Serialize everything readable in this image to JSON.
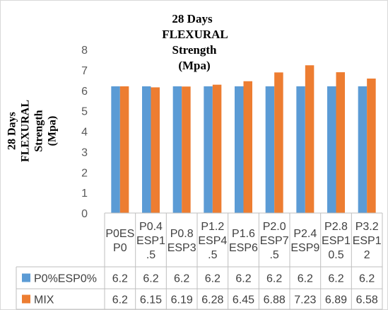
{
  "chart_data": {
    "type": "bar",
    "title": [
      "28 Days",
      "FLEXURAL",
      "Strength",
      "(Mpa)"
    ],
    "ylabel": [
      "28 Days",
      "FLEXURAL",
      "Strength",
      "(Mpa)"
    ],
    "xlabel": "",
    "ylim": [
      0,
      8
    ],
    "yticks": [
      "0",
      "1",
      "2",
      "3",
      "4",
      "5",
      "6",
      "7",
      "8"
    ],
    "grid": false,
    "legend": "data-table",
    "categories": [
      [
        "P0ES",
        "P0"
      ],
      [
        "P0.4",
        "ESP1",
        ".5"
      ],
      [
        "P0.8",
        "ESP3"
      ],
      [
        "P1.2",
        "ESP4",
        ".5"
      ],
      [
        "P1.6",
        "ESP6"
      ],
      [
        "P2.0",
        "ESP7",
        ".5"
      ],
      [
        "P2.4",
        "ESP9"
      ],
      [
        "P2.8",
        "ESP1",
        "0.5"
      ],
      [
        "P3.2",
        "ESP1",
        "2"
      ]
    ],
    "series": [
      {
        "name": "P0%ESP0%",
        "color": "#5B9BD5",
        "values": [
          6.2,
          6.2,
          6.2,
          6.2,
          6.2,
          6.2,
          6.2,
          6.2,
          6.2
        ],
        "labels": [
          "6.2",
          "6.2",
          "6.2",
          "6.2",
          "6.2",
          "6.2",
          "6.2",
          "6.2",
          "6.2"
        ]
      },
      {
        "name": "MIX",
        "color": "#ED7D31",
        "values": [
          6.2,
          6.15,
          6.19,
          6.28,
          6.45,
          6.88,
          7.23,
          6.89,
          6.58
        ],
        "labels": [
          "6.2",
          "6.15",
          "6.19",
          "6.28",
          "6.45",
          "6.88",
          "7.23",
          "6.89",
          "6.58"
        ]
      }
    ]
  }
}
